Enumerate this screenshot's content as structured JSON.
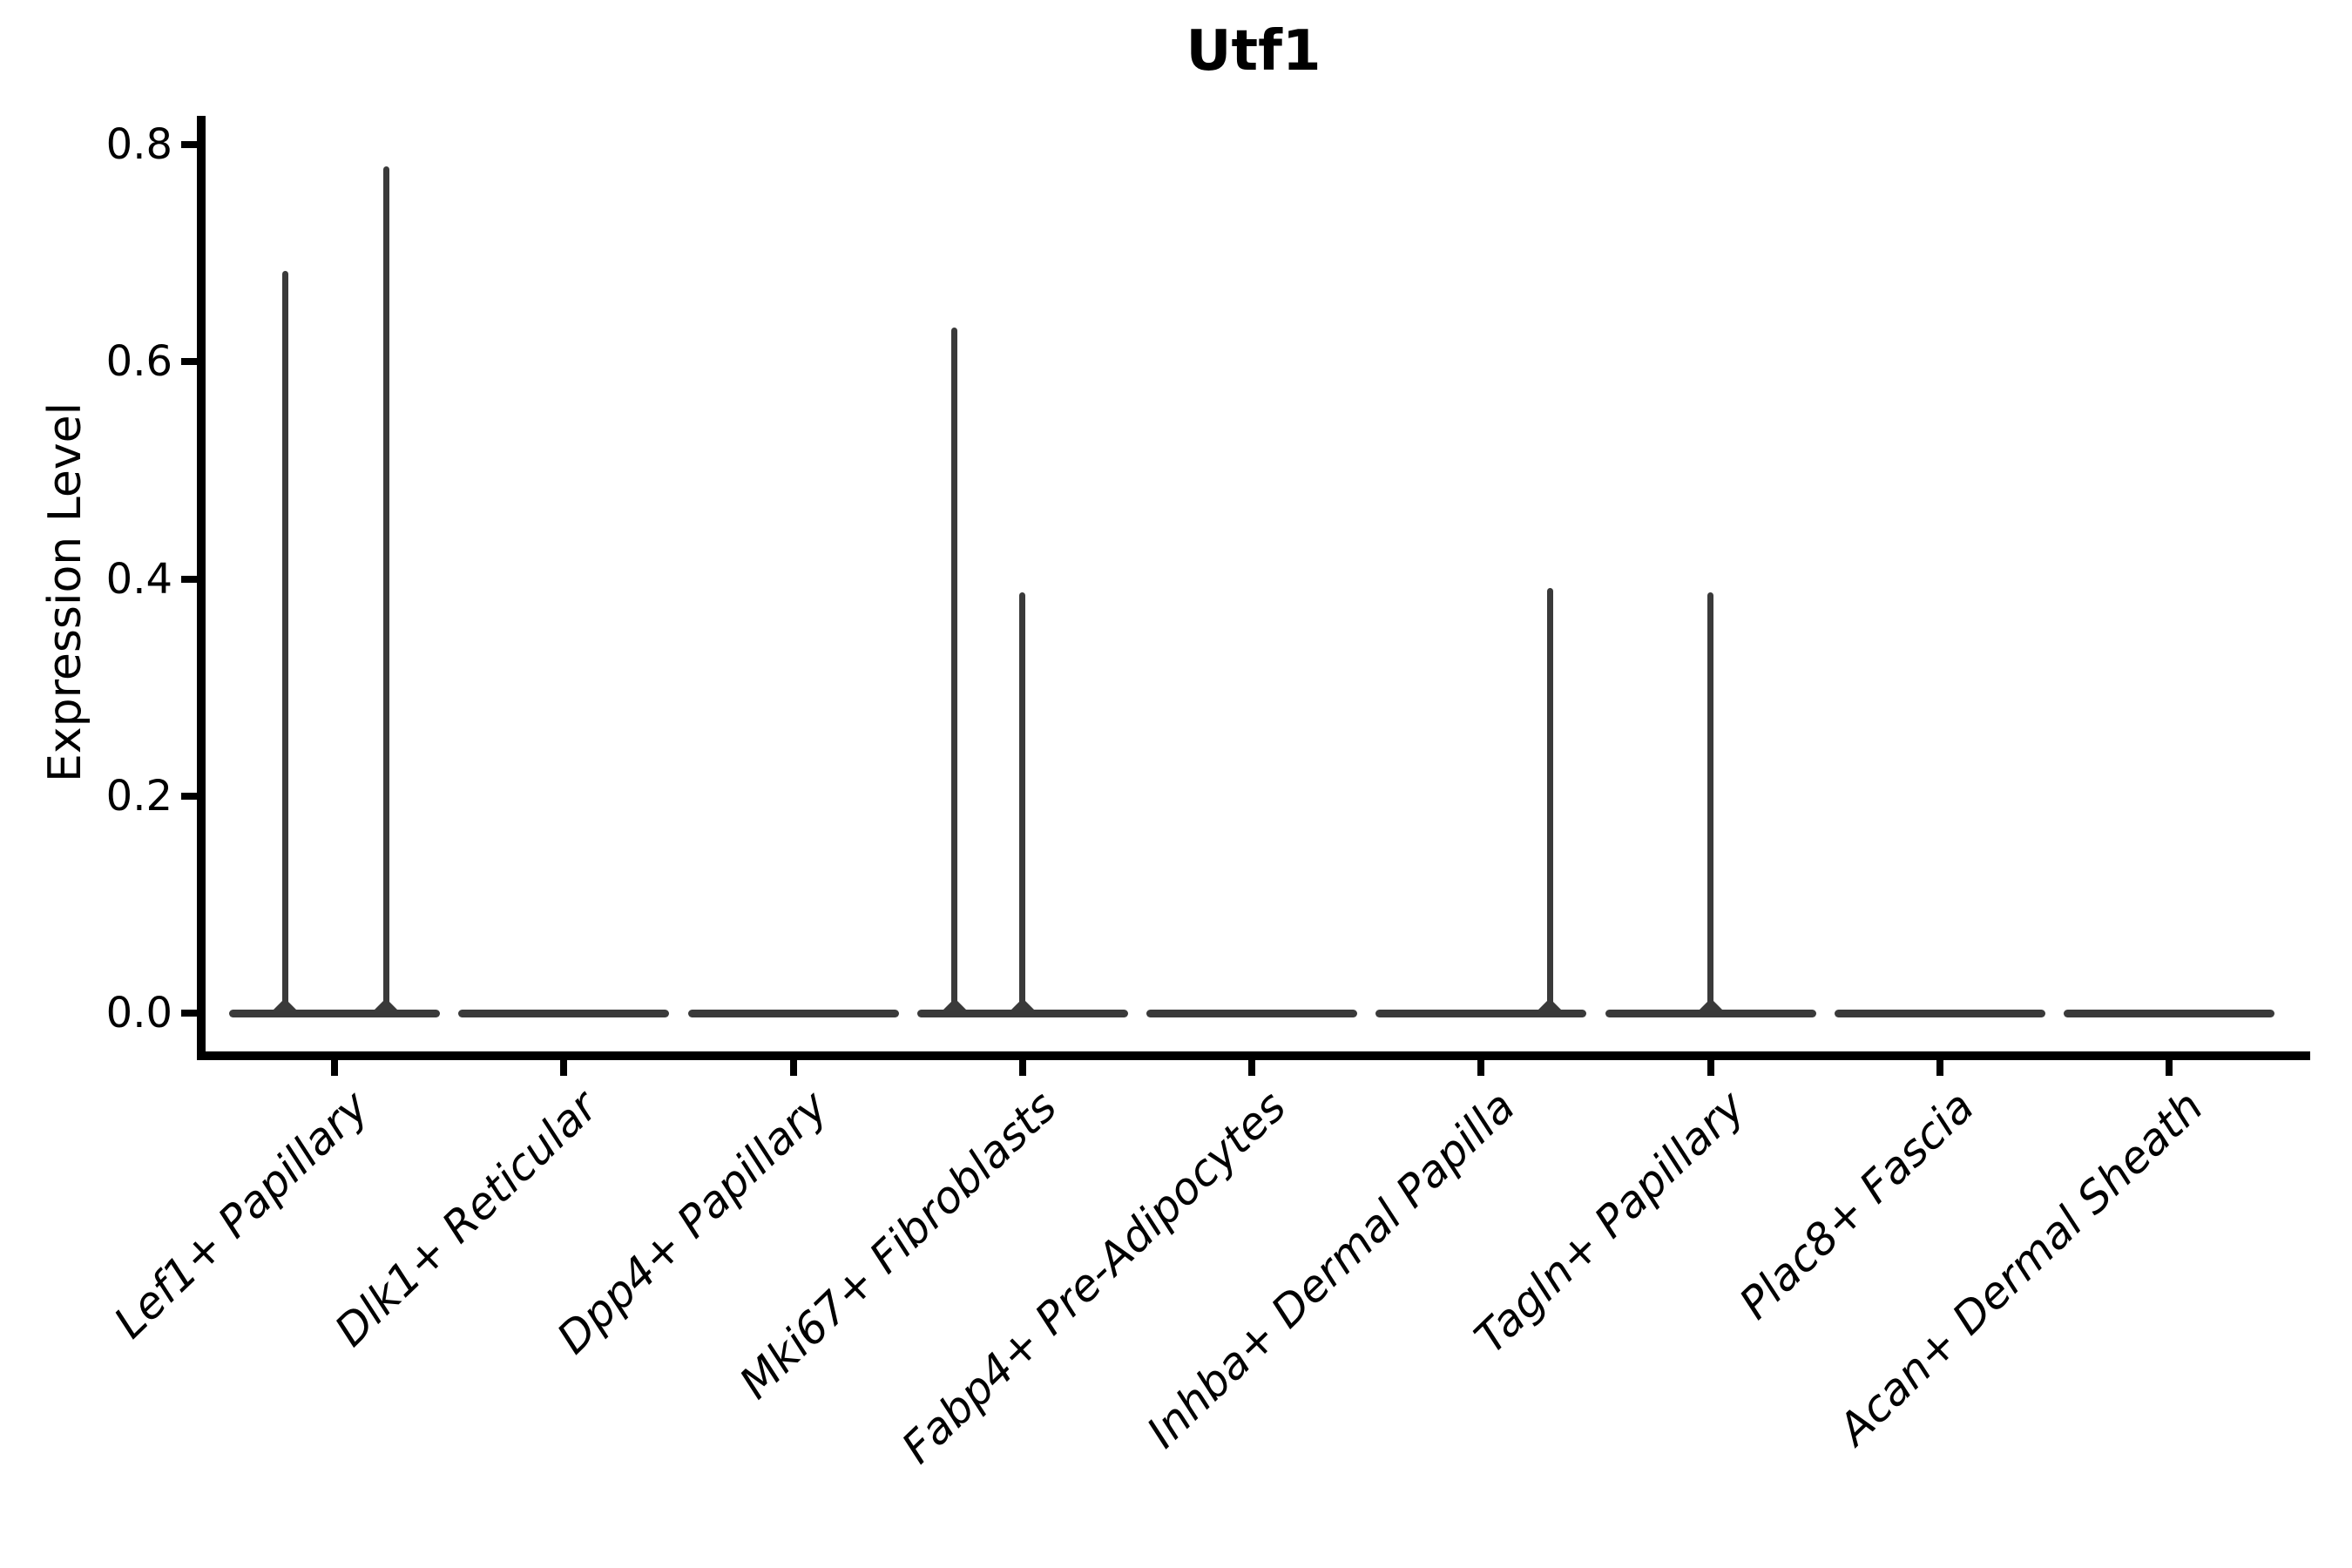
{
  "title": "Utf1",
  "chart_data": {
    "type": "violin",
    "title": "Utf1",
    "xlabel": "",
    "ylabel": "Expression Level",
    "categories": [
      "Lef1+ Papillary",
      "Dlk1+ Reticular",
      "Dpp4+ Papillary",
      "Mki67+ Fibroblasts",
      "Fabp4+ Pre-Adipocytes",
      "Inhba+ Dermal Papilla",
      "Tagln+ Papillary",
      "Plac8+ Fascia",
      "Acan+ Dermal Sheath"
    ],
    "y_ticks": [
      {
        "value": 0.0,
        "label": "0.0"
      },
      {
        "value": 0.2,
        "label": "0.2"
      },
      {
        "value": 0.4,
        "label": "0.4"
      },
      {
        "value": 0.6,
        "label": "0.6"
      },
      {
        "value": 0.8,
        "label": "0.8"
      }
    ],
    "ylim": [
      -0.037,
      0.826
    ],
    "grid": false,
    "legend": "none",
    "x_label_rotation_deg": 44,
    "violins": [
      {
        "category": "Lef1+ Papillary",
        "baseline_value": 0.0,
        "spikes": [
          {
            "x_offset_frac": -0.215,
            "value": 0.684
          },
          {
            "x_offset_frac": 0.225,
            "value": 0.78
          }
        ]
      },
      {
        "category": "Dlk1+ Reticular",
        "baseline_value": 0.0,
        "spikes": []
      },
      {
        "category": "Dpp4+ Papillary",
        "baseline_value": 0.0,
        "spikes": []
      },
      {
        "category": "Mki67+ Fibroblasts",
        "baseline_value": 0.0,
        "spikes": [
          {
            "x_offset_frac": -0.296,
            "value": 0.632
          },
          {
            "x_offset_frac": 0.0,
            "value": 0.388
          }
        ]
      },
      {
        "category": "Fabp4+ Pre-Adipocytes",
        "baseline_value": 0.0,
        "spikes": []
      },
      {
        "category": "Inhba+ Dermal Papilla",
        "baseline_value": 0.0,
        "spikes": [
          {
            "x_offset_frac": 0.3,
            "value": 0.392
          }
        ]
      },
      {
        "category": "Tagln+ Papillary",
        "baseline_value": 0.0,
        "spikes": [
          {
            "x_offset_frac": 0.0,
            "value": 0.388
          }
        ]
      },
      {
        "category": "Plac8+ Fascia",
        "baseline_value": 0.0,
        "spikes": []
      },
      {
        "category": "Acan+ Dermal Sheath",
        "baseline_value": 0.0,
        "spikes": []
      }
    ],
    "colors": {
      "violin": "#3a3a3a",
      "axis": "#000000",
      "text": "#000000",
      "background": "#ffffff"
    }
  }
}
